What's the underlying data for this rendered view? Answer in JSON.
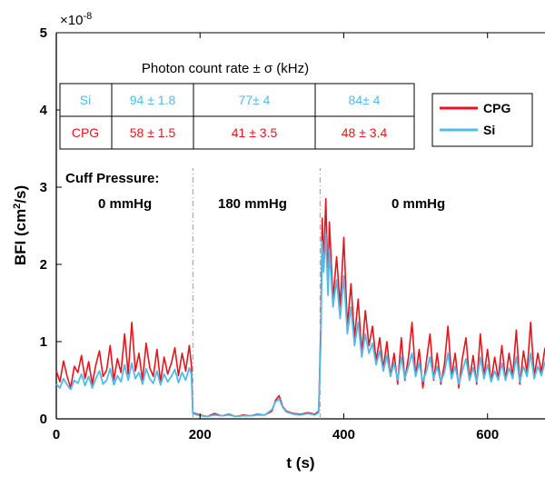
{
  "colors": {
    "CPG": "#e8141c",
    "Si": "#4fbbea",
    "divider": "#9a9a9a"
  },
  "chart_data": {
    "type": "line",
    "title": "",
    "xlabel": "t (s)",
    "ylabel_main": "BFI (cm",
    "ylabel_sup": "2",
    "ylabel_tail": "/s)",
    "y_scale_prefix": "×10",
    "y_scale_exp": "-8",
    "xlim": [
      0,
      680
    ],
    "ylim": [
      0,
      5
    ],
    "x_ticks": [
      0,
      200,
      400,
      600
    ],
    "y_ticks": [
      0,
      1,
      2,
      3,
      4,
      5
    ],
    "x_tick_labels": [
      "0",
      "200",
      "400",
      "600"
    ],
    "y_tick_labels": [
      "0",
      "1",
      "2",
      "3",
      "4",
      "5"
    ],
    "grid": false,
    "legend_position": "top-right",
    "series": [
      {
        "name": "CPG",
        "color": "#e8141c",
        "points": [
          [
            0,
            0.62
          ],
          [
            5,
            0.48
          ],
          [
            10,
            0.75
          ],
          [
            15,
            0.55
          ],
          [
            20,
            0.4
          ],
          [
            25,
            0.68
          ],
          [
            30,
            0.6
          ],
          [
            35,
            0.82
          ],
          [
            40,
            0.52
          ],
          [
            45,
            0.74
          ],
          [
            50,
            0.45
          ],
          [
            55,
            0.7
          ],
          [
            60,
            0.88
          ],
          [
            65,
            0.55
          ],
          [
            70,
            0.63
          ],
          [
            75,
            0.95
          ],
          [
            80,
            0.5
          ],
          [
            85,
            0.78
          ],
          [
            90,
            0.6
          ],
          [
            95,
            1.1
          ],
          [
            100,
            0.58
          ],
          [
            105,
            1.25
          ],
          [
            110,
            0.62
          ],
          [
            115,
            0.85
          ],
          [
            120,
            0.5
          ],
          [
            125,
            0.98
          ],
          [
            130,
            0.66
          ],
          [
            135,
            0.55
          ],
          [
            140,
            0.9
          ],
          [
            145,
            0.48
          ],
          [
            150,
            0.8
          ],
          [
            155,
            0.58
          ],
          [
            160,
            0.72
          ],
          [
            165,
            0.92
          ],
          [
            170,
            0.56
          ],
          [
            175,
            0.85
          ],
          [
            180,
            0.62
          ],
          [
            185,
            0.95
          ],
          [
            188,
            0.7
          ],
          [
            190,
            0.08
          ],
          [
            200,
            0.05
          ],
          [
            210,
            0.03
          ],
          [
            220,
            0.07
          ],
          [
            230,
            0.04
          ],
          [
            240,
            0.06
          ],
          [
            250,
            0.03
          ],
          [
            260,
            0.05
          ],
          [
            270,
            0.04
          ],
          [
            280,
            0.06
          ],
          [
            290,
            0.05
          ],
          [
            300,
            0.1
          ],
          [
            305,
            0.24
          ],
          [
            310,
            0.3
          ],
          [
            315,
            0.16
          ],
          [
            320,
            0.1
          ],
          [
            330,
            0.07
          ],
          [
            340,
            0.06
          ],
          [
            350,
            0.08
          ],
          [
            360,
            0.06
          ],
          [
            365,
            0.1
          ],
          [
            368,
            1.2
          ],
          [
            370,
            2.6
          ],
          [
            372,
            2.0
          ],
          [
            375,
            2.85
          ],
          [
            378,
            1.7
          ],
          [
            380,
            2.55
          ],
          [
            385,
            1.55
          ],
          [
            390,
            2.1
          ],
          [
            395,
            1.45
          ],
          [
            400,
            2.35
          ],
          [
            405,
            1.2
          ],
          [
            410,
            1.75
          ],
          [
            415,
            1.05
          ],
          [
            420,
            1.55
          ],
          [
            425,
            0.85
          ],
          [
            430,
            1.4
          ],
          [
            435,
            0.95
          ],
          [
            440,
            1.2
          ],
          [
            445,
            0.75
          ],
          [
            450,
            1.05
          ],
          [
            455,
            0.65
          ],
          [
            460,
            1.0
          ],
          [
            465,
            0.55
          ],
          [
            470,
            0.85
          ],
          [
            475,
            0.45
          ],
          [
            480,
            1.05
          ],
          [
            485,
            0.5
          ],
          [
            490,
            0.8
          ],
          [
            495,
            1.25
          ],
          [
            500,
            0.55
          ],
          [
            505,
            0.9
          ],
          [
            510,
            0.4
          ],
          [
            515,
            0.75
          ],
          [
            520,
            1.1
          ],
          [
            525,
            0.5
          ],
          [
            530,
            0.85
          ],
          [
            535,
            0.45
          ],
          [
            540,
            0.7
          ],
          [
            545,
            1.2
          ],
          [
            550,
            0.55
          ],
          [
            555,
            0.85
          ],
          [
            560,
            0.4
          ],
          [
            565,
            0.78
          ],
          [
            570,
            1.05
          ],
          [
            575,
            0.5
          ],
          [
            580,
            0.82
          ],
          [
            585,
            0.45
          ],
          [
            590,
            1.1
          ],
          [
            595,
            0.55
          ],
          [
            600,
            0.9
          ],
          [
            605,
            0.48
          ],
          [
            610,
            0.8
          ],
          [
            615,
            0.52
          ],
          [
            620,
            0.95
          ],
          [
            625,
            0.5
          ],
          [
            630,
            0.85
          ],
          [
            635,
            0.55
          ],
          [
            640,
            1.15
          ],
          [
            645,
            0.45
          ],
          [
            650,
            0.88
          ],
          [
            655,
            0.6
          ],
          [
            660,
            1.25
          ],
          [
            665,
            0.55
          ],
          [
            670,
            0.85
          ],
          [
            675,
            0.6
          ],
          [
            680,
            0.92
          ]
        ]
      },
      {
        "name": "Si",
        "color": "#4fbbea",
        "points": [
          [
            0,
            0.45
          ],
          [
            5,
            0.4
          ],
          [
            10,
            0.52
          ],
          [
            15,
            0.44
          ],
          [
            20,
            0.38
          ],
          [
            25,
            0.5
          ],
          [
            30,
            0.46
          ],
          [
            35,
            0.58
          ],
          [
            40,
            0.43
          ],
          [
            45,
            0.55
          ],
          [
            50,
            0.4
          ],
          [
            55,
            0.52
          ],
          [
            60,
            0.62
          ],
          [
            65,
            0.45
          ],
          [
            70,
            0.5
          ],
          [
            75,
            0.65
          ],
          [
            80,
            0.44
          ],
          [
            85,
            0.56
          ],
          [
            90,
            0.48
          ],
          [
            95,
            0.7
          ],
          [
            100,
            0.5
          ],
          [
            105,
            0.72
          ],
          [
            110,
            0.52
          ],
          [
            115,
            0.6
          ],
          [
            120,
            0.45
          ],
          [
            125,
            0.65
          ],
          [
            130,
            0.52
          ],
          [
            135,
            0.46
          ],
          [
            140,
            0.62
          ],
          [
            145,
            0.44
          ],
          [
            150,
            0.58
          ],
          [
            155,
            0.48
          ],
          [
            160,
            0.55
          ],
          [
            165,
            0.64
          ],
          [
            170,
            0.47
          ],
          [
            175,
            0.6
          ],
          [
            180,
            0.5
          ],
          [
            185,
            0.66
          ],
          [
            188,
            0.58
          ],
          [
            190,
            0.07
          ],
          [
            200,
            0.04
          ],
          [
            210,
            0.03
          ],
          [
            220,
            0.05
          ],
          [
            230,
            0.04
          ],
          [
            240,
            0.05
          ],
          [
            250,
            0.03
          ],
          [
            260,
            0.04
          ],
          [
            270,
            0.04
          ],
          [
            280,
            0.05
          ],
          [
            290,
            0.05
          ],
          [
            300,
            0.12
          ],
          [
            305,
            0.22
          ],
          [
            310,
            0.26
          ],
          [
            315,
            0.15
          ],
          [
            320,
            0.09
          ],
          [
            330,
            0.06
          ],
          [
            340,
            0.05
          ],
          [
            350,
            0.07
          ],
          [
            360,
            0.05
          ],
          [
            365,
            0.08
          ],
          [
            368,
            1.0
          ],
          [
            370,
            2.3
          ],
          [
            372,
            1.9
          ],
          [
            375,
            2.4
          ],
          [
            378,
            1.6
          ],
          [
            380,
            2.2
          ],
          [
            385,
            1.45
          ],
          [
            390,
            1.8
          ],
          [
            395,
            1.3
          ],
          [
            400,
            1.85
          ],
          [
            405,
            1.1
          ],
          [
            410,
            1.45
          ],
          [
            415,
            0.95
          ],
          [
            420,
            1.25
          ],
          [
            425,
            0.8
          ],
          [
            430,
            1.1
          ],
          [
            435,
            0.85
          ],
          [
            440,
            0.98
          ],
          [
            445,
            0.7
          ],
          [
            450,
            0.88
          ],
          [
            455,
            0.62
          ],
          [
            460,
            0.82
          ],
          [
            465,
            0.55
          ],
          [
            470,
            0.72
          ],
          [
            475,
            0.5
          ],
          [
            480,
            0.8
          ],
          [
            485,
            0.52
          ],
          [
            490,
            0.68
          ],
          [
            495,
            0.85
          ],
          [
            500,
            0.55
          ],
          [
            505,
            0.72
          ],
          [
            510,
            0.48
          ],
          [
            515,
            0.62
          ],
          [
            520,
            0.8
          ],
          [
            525,
            0.52
          ],
          [
            530,
            0.68
          ],
          [
            535,
            0.48
          ],
          [
            540,
            0.6
          ],
          [
            545,
            0.85
          ],
          [
            550,
            0.52
          ],
          [
            555,
            0.68
          ],
          [
            560,
            0.45
          ],
          [
            565,
            0.62
          ],
          [
            570,
            0.78
          ],
          [
            575,
            0.5
          ],
          [
            580,
            0.66
          ],
          [
            585,
            0.48
          ],
          [
            590,
            0.8
          ],
          [
            595,
            0.52
          ],
          [
            600,
            0.7
          ],
          [
            605,
            0.48
          ],
          [
            610,
            0.62
          ],
          [
            615,
            0.5
          ],
          [
            620,
            0.72
          ],
          [
            625,
            0.5
          ],
          [
            630,
            0.66
          ],
          [
            635,
            0.52
          ],
          [
            640,
            0.8
          ],
          [
            645,
            0.48
          ],
          [
            650,
            0.68
          ],
          [
            655,
            0.55
          ],
          [
            660,
            0.85
          ],
          [
            665,
            0.52
          ],
          [
            670,
            0.68
          ],
          [
            675,
            0.56
          ],
          [
            680,
            0.74
          ]
        ]
      }
    ],
    "dividers_x": [
      190,
      367
    ],
    "annotations": {
      "cuff_label": "Cuff Pressure:",
      "seg1": "0 mmHg",
      "seg2": "180 mmHg",
      "seg3": "0 mmHg"
    },
    "inset_table": {
      "title": "Photon count rate ± σ (kHz)",
      "rows": [
        {
          "name": "Si",
          "cells": [
            "94 ± 1.8",
            "77± 4",
            "84± 4"
          ]
        },
        {
          "name": "CPG",
          "cells": [
            "58 ± 1.5",
            "41 ± 3.5",
            "48 ± 3.4"
          ]
        }
      ]
    }
  }
}
